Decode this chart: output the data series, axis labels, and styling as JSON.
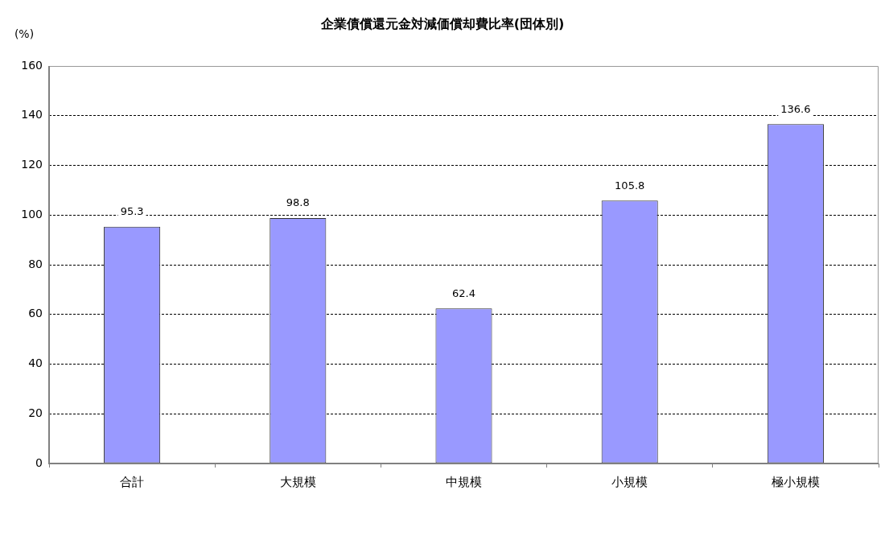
{
  "chart_data": {
    "type": "bar",
    "title": "企業債償還元金対減価償却費比率(団体別)",
    "ylabel": "(%)",
    "categories": [
      "合計",
      "大規模",
      "中規模",
      "小規模",
      "極小規模"
    ],
    "values": [
      95.3,
      98.8,
      62.4,
      105.8,
      136.6
    ],
    "color": "#9999ff",
    "ylim": [
      0,
      160
    ],
    "yticks": [
      0,
      20,
      40,
      60,
      80,
      100,
      120,
      140,
      160
    ],
    "grid": "y",
    "data_labels": true
  }
}
